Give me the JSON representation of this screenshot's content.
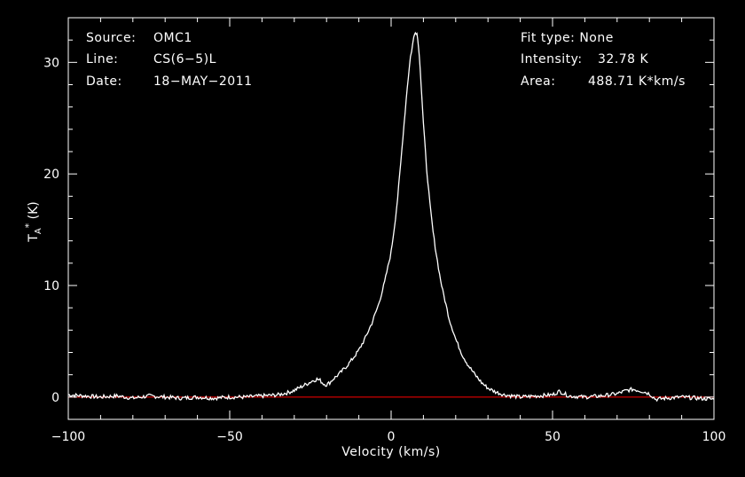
{
  "header_left": {
    "source_label": "Source:",
    "source_value": "OMC1",
    "line_label": "Line:",
    "line_value": "CS(6−5)L",
    "date_label": "Date:",
    "date_value": "18−MAY−2011"
  },
  "header_right": {
    "fit_label": "Fit type:",
    "fit_value": "None",
    "intensity_label": "Intensity:",
    "intensity_value": "32.78 K",
    "area_label": "Area:",
    "area_value": "488.71 K*km/s"
  },
  "chart_data": {
    "type": "line",
    "xlabel": "Velocity (km/s)",
    "ylabel": "T",
    "ylabel_sub": "A",
    "ylabel_sup": "*",
    "ylabel_unit": " (K)",
    "xlim": [
      -100,
      100
    ],
    "ylim": [
      -2,
      34
    ],
    "x_ticks": [
      -100,
      -50,
      0,
      50,
      100
    ],
    "x_tick_labels": [
      "−100",
      "−50",
      "0",
      "50",
      "100"
    ],
    "y_ticks": [
      0,
      10,
      20,
      30
    ],
    "y_tick_labels": [
      "0",
      "10",
      "20",
      "30"
    ],
    "baseline": 0,
    "series_color": "#ffffff",
    "baseline_color": "#ff0000",
    "background": "#000000",
    "series": [
      {
        "x": [
          -100,
          -95,
          -90,
          -85,
          -80,
          -75,
          -70,
          -65,
          -60,
          -55,
          -50,
          -45,
          -40,
          -35,
          -32,
          -30,
          -28,
          -26,
          -24,
          -23,
          -22,
          -21,
          -20,
          -19,
          -18,
          -16,
          -14,
          -12,
          -10,
          -8,
          -6,
          -4,
          -2,
          0,
          1,
          2,
          3,
          4,
          5,
          6,
          7,
          7.5,
          8,
          8.5,
          9,
          9.5,
          10,
          11,
          12,
          13,
          14,
          15,
          16,
          18,
          20,
          22,
          24,
          26,
          28,
          30,
          32,
          35,
          40,
          45,
          50,
          52,
          53,
          55,
          60,
          65,
          70,
          73,
          75,
          78,
          80,
          82,
          85,
          90,
          95,
          100
        ],
        "y": [
          0.2,
          0.1,
          0.0,
          0.1,
          -0.1,
          0.1,
          0.0,
          -0.1,
          0.0,
          -0.1,
          0.0,
          0.0,
          0.1,
          0.2,
          0.4,
          0.6,
          0.9,
          1.2,
          1.5,
          1.6,
          1.5,
          1.2,
          1.1,
          1.3,
          1.6,
          2.1,
          2.7,
          3.4,
          4.2,
          5.3,
          6.6,
          8.2,
          10.3,
          13.0,
          15.2,
          17.8,
          21.0,
          24.5,
          27.8,
          30.5,
          32.2,
          32.78,
          32.6,
          31.5,
          29.5,
          27.0,
          24.5,
          20.5,
          17.3,
          14.8,
          12.8,
          11.0,
          9.5,
          7.0,
          5.2,
          3.8,
          2.8,
          2.0,
          1.3,
          0.8,
          0.5,
          0.2,
          0.0,
          0.1,
          0.2,
          0.5,
          0.4,
          0.1,
          0.0,
          0.1,
          0.3,
          0.6,
          0.7,
          0.5,
          0.3,
          -0.2,
          -0.1,
          0.0,
          -0.1,
          -0.2
        ]
      }
    ]
  }
}
